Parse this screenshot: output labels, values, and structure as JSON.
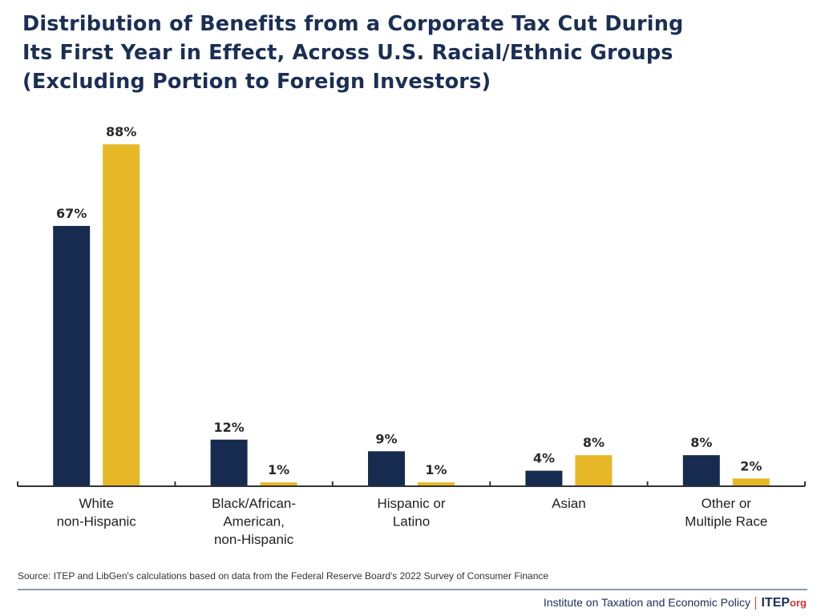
{
  "title_lines": [
    "Distribution of Benefits from a Corporate Tax Cut During",
    "Its First Year in Effect, Across U.S. Racial/Ethnic Groups",
    "(Excluding Portion to Foreign Investors)"
  ],
  "chart_data": {
    "type": "bar",
    "title": "Distribution of Benefits from a Corporate Tax Cut During Its First Year in Effect, Across U.S. Racial/Ethnic Groups (Excluding Portion to Foreign Investors)",
    "categories": [
      [
        "White",
        "non-Hispanic"
      ],
      [
        "Black/African-",
        "American,",
        "non-Hispanic"
      ],
      [
        "Hispanic or",
        "Latino"
      ],
      [
        "Asian"
      ],
      [
        "Other or",
        "Multiple Race"
      ]
    ],
    "series": [
      {
        "values": [
          67,
          12,
          9,
          4,
          8
        ],
        "labels": [
          "67%",
          "12%",
          "9%",
          "4%",
          "8%"
        ],
        "color": "#172b50"
      },
      {
        "values": [
          88,
          1,
          1,
          8,
          2
        ],
        "labels": [
          "88%",
          "1%",
          "1%",
          "8%",
          "2%"
        ],
        "color": "#e6b828"
      }
    ],
    "ylim": [
      0,
      88
    ],
    "grid": false,
    "legend": "none",
    "xlabel": "",
    "ylabel": ""
  },
  "source": "Source: ITEP and LibGen's calculations based on data from the Federal Reserve Board's 2022 Survey of Consumer Finance",
  "footer": {
    "org_name": "Institute on Taxation and Economic Policy",
    "brand": "ITEP",
    "brand_suffix": "org"
  }
}
